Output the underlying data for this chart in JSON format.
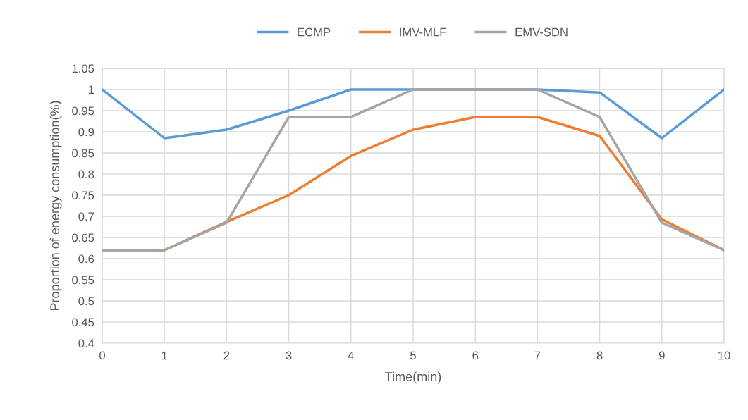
{
  "chart_data": {
    "type": "line",
    "xlabel": "Time(min)",
    "ylabel": "Proportion of energy consumption(%)",
    "x": [
      0,
      1,
      2,
      3,
      4,
      5,
      6,
      7,
      8,
      9,
      10
    ],
    "series": [
      {
        "name": "ECMP",
        "color": "#5b9bd5",
        "values": [
          1.0,
          0.885,
          0.905,
          0.95,
          1.0,
          1.0,
          1.0,
          1.0,
          0.993,
          0.885,
          1.0
        ]
      },
      {
        "name": "IMV-MLF",
        "color": "#ed7d31",
        "values": [
          0.62,
          0.62,
          0.687,
          0.75,
          0.843,
          0.905,
          0.935,
          0.935,
          0.89,
          0.693,
          0.62
        ]
      },
      {
        "name": "EMV-SDN",
        "color": "#a5a5a5",
        "values": [
          0.62,
          0.62,
          0.685,
          0.935,
          0.935,
          1.0,
          1.0,
          1.0,
          0.935,
          0.685,
          0.62
        ]
      }
    ],
    "xlim": [
      0,
      10
    ],
    "xticks": [
      0,
      1,
      2,
      3,
      4,
      5,
      6,
      7,
      8,
      9,
      10
    ],
    "ylim": [
      0.4,
      1.05
    ],
    "yticks": [
      0.4,
      0.45,
      0.5,
      0.55,
      0.6,
      0.65,
      0.7,
      0.75,
      0.8,
      0.85,
      0.9,
      0.95,
      1,
      1.05
    ],
    "grid": true,
    "legend": "top",
    "marker": "none",
    "line_style": "solid"
  }
}
